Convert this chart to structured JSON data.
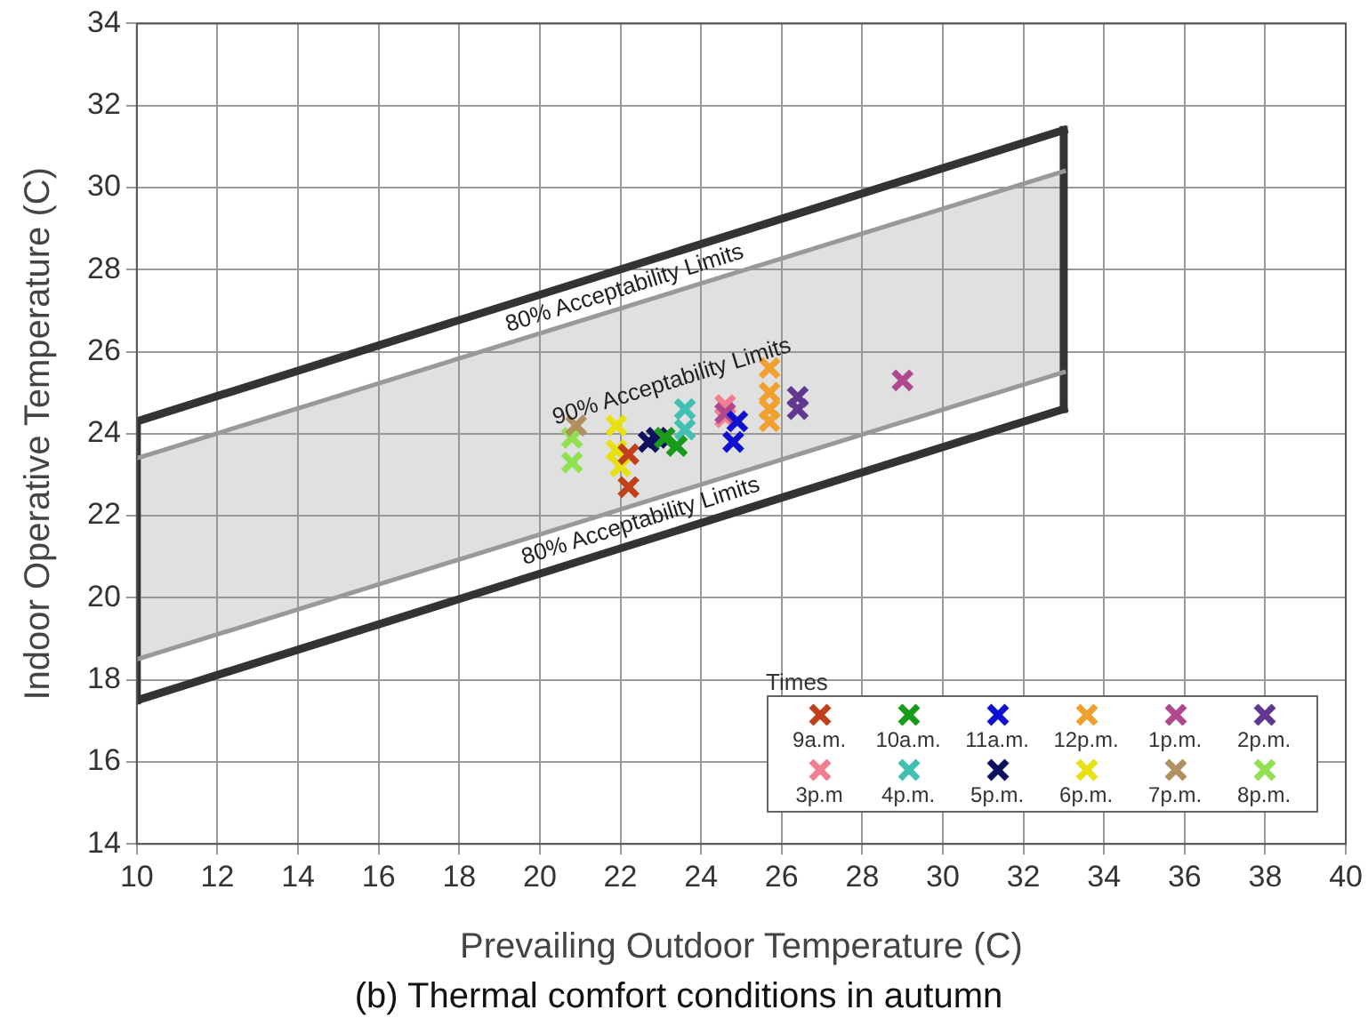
{
  "chart_data": {
    "type": "scatter",
    "title": "(b) Thermal comfort conditions in autumn",
    "xlabel": "Prevailing Outdoor Temperature (C)",
    "ylabel": "Indoor Operative Temperature (C)",
    "legend_title": "Times",
    "legend": "bottom right",
    "grid": true,
    "marker": "cross",
    "xlim": [
      10,
      40
    ],
    "xticks": [
      10,
      12,
      14,
      16,
      18,
      20,
      22,
      24,
      26,
      28,
      30,
      32,
      34,
      36,
      38,
      40
    ],
    "ylim": [
      14,
      34
    ],
    "yticks": [
      14,
      16,
      18,
      20,
      22,
      24,
      26,
      28,
      30,
      32,
      34
    ],
    "annotations": [
      "80% Acceptability Limits",
      "90% Acceptability Limits",
      "80% Acceptability Limits"
    ],
    "series": [
      {
        "type": "line",
        "marker": "none",
        "color": "#333333",
        "x": [
          10,
          33
        ],
        "values": [
          24.3,
          31.4
        ]
      },
      {
        "type": "line",
        "marker": "none",
        "color": "#999999",
        "x": [
          10,
          33
        ],
        "values": [
          23.4,
          30.4
        ],
        "lower": [
          18.5,
          25.5
        ],
        "upper": [
          23.4,
          30.4
        ]
      },
      {
        "type": "line",
        "marker": "none",
        "color": "#999999",
        "x": [
          10,
          33
        ],
        "values": [
          18.5,
          25.5
        ]
      },
      {
        "type": "line",
        "marker": "none",
        "color": "#333333",
        "x": [
          10,
          33
        ],
        "values": [
          17.5,
          24.6
        ]
      },
      {
        "type": "line",
        "marker": "none",
        "color": "#333333",
        "x": [
          10,
          10
        ],
        "values": [
          17.5,
          24.3
        ]
      },
      {
        "type": "line",
        "marker": "none",
        "color": "#333333",
        "x": [
          33,
          33
        ],
        "values": [
          24.6,
          31.4
        ]
      },
      {
        "name": "9a.m.",
        "color": "#c0401a",
        "x": [
          22.2,
          22.2
        ],
        "values": [
          22.7,
          23.5
        ]
      },
      {
        "name": "10a.m.",
        "color": "#1a9a1a",
        "x": [
          23.1,
          23.4
        ],
        "values": [
          23.9,
          23.7
        ]
      },
      {
        "name": "11a.m.",
        "color": "#1010d0",
        "x": [
          24.8,
          24.9
        ],
        "values": [
          23.8,
          24.3
        ]
      },
      {
        "name": "12p.m.",
        "color": "#f0a030",
        "x": [
          25.7,
          25.7,
          25.7,
          25.7
        ],
        "values": [
          25.6,
          25.0,
          24.6,
          24.3
        ]
      },
      {
        "name": "1p.m.",
        "color": "#b04890",
        "x": [
          24.6,
          29.0
        ],
        "values": [
          24.5,
          25.3
        ]
      },
      {
        "name": "2p.m.",
        "color": "#603890",
        "x": [
          26.4,
          26.4
        ],
        "values": [
          24.9,
          24.6
        ]
      },
      {
        "name": "3p.m",
        "color": "#f08090",
        "x": [
          24.6,
          24.6
        ],
        "values": [
          24.7,
          24.4
        ]
      },
      {
        "name": "4p.m.",
        "color": "#40c0b0",
        "x": [
          23.6,
          23.6
        ],
        "values": [
          24.6,
          24.1
        ]
      },
      {
        "name": "5p.m.",
        "color": "#101060",
        "x": [
          22.7,
          22.9
        ],
        "values": [
          23.8,
          23.9
        ]
      },
      {
        "name": "6p.m.",
        "color": "#e8e010",
        "x": [
          21.9,
          21.9,
          22.0
        ],
        "values": [
          24.2,
          23.6,
          23.2
        ]
      },
      {
        "name": "7p.m.",
        "color": "#b09060",
        "x": [
          20.9
        ],
        "values": [
          24.2
        ]
      },
      {
        "name": "8p.m.",
        "color": "#90e050",
        "x": [
          20.8,
          20.8
        ],
        "values": [
          23.9,
          23.3
        ]
      }
    ]
  }
}
